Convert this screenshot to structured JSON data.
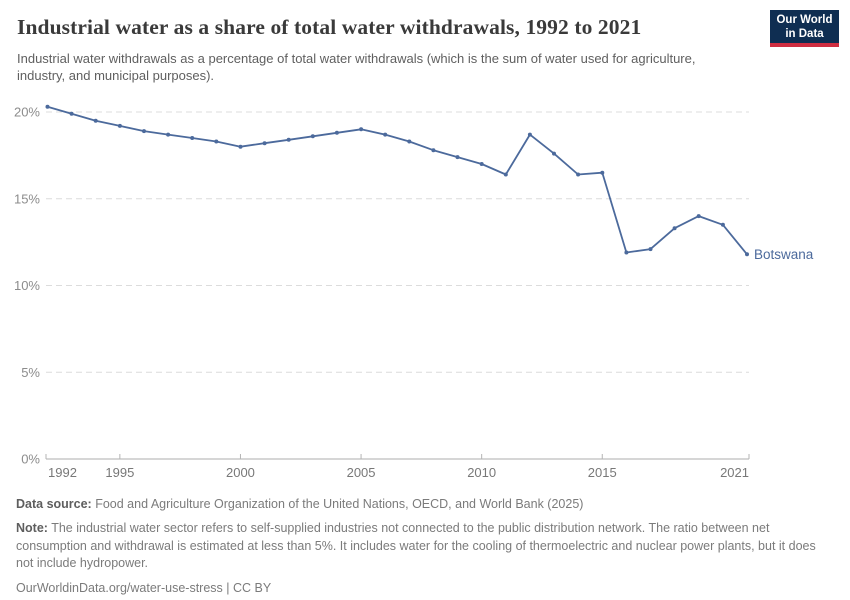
{
  "header": {
    "title": "Industrial water as a share of total water withdrawals, 1992 to 2021",
    "subtitle": "Industrial water withdrawals as a percentage of total water withdrawals (which is the sum of water used for agriculture, industry, and municipal purposes)."
  },
  "logo": {
    "line1": "Our World",
    "line2": "in Data"
  },
  "chart_data": {
    "type": "line",
    "title": "Industrial water as a share of total water withdrawals, 1992 to 2021",
    "x": [
      1992,
      1993,
      1994,
      1995,
      1996,
      1997,
      1998,
      1999,
      2000,
      2001,
      2002,
      2003,
      2004,
      2005,
      2006,
      2007,
      2008,
      2009,
      2010,
      2011,
      2012,
      2013,
      2014,
      2015,
      2016,
      2017,
      2018,
      2019,
      2020,
      2021
    ],
    "series": [
      {
        "name": "Botswana",
        "values": [
          20.3,
          19.9,
          19.5,
          19.2,
          18.9,
          18.7,
          18.5,
          18.3,
          18.0,
          18.2,
          18.4,
          18.6,
          18.8,
          19.0,
          18.7,
          18.3,
          17.8,
          17.4,
          17.0,
          16.4,
          18.7,
          17.6,
          16.4,
          16.5,
          11.9,
          12.1,
          13.3,
          14.0,
          13.5,
          11.8
        ]
      }
    ],
    "unit": "%",
    "ylim": [
      0,
      20.5
    ],
    "yticks": [
      0,
      5,
      10,
      15,
      20
    ],
    "ytick_labels": [
      "0%",
      "5%",
      "10%",
      "15%",
      "20%"
    ],
    "xticks": [
      1992,
      1995,
      2000,
      2005,
      2010,
      2015,
      2021
    ],
    "grid": "horizontal-dashed",
    "legend_position": "end-of-line"
  },
  "footer": {
    "data_source_label": "Data source:",
    "data_source_text": "Food and Agriculture Organization of the United Nations, OECD, and World Bank (2025)",
    "note_label": "Note:",
    "note_text": "The industrial water sector refers to self-supplied industries not connected to the public distribution network. The ratio between net consumption and withdrawal is estimated at less than 5%. It includes water for the cooling of thermoelectric and nuclear power plants, but it does not include hydropower.",
    "citation": "OurWorldinData.org/water-use-stress | CC BY"
  },
  "colors": {
    "series": "#4c6a9c",
    "title": "#3a3a3a",
    "subtitle": "#5f5f5f",
    "y_axis_label": "#8c8c8c",
    "x_axis_label": "#787878",
    "gridline": "#dcdcdc",
    "axis_line": "#c8c8c8",
    "tick_mark": "#b4b4b4",
    "logo_bg": "#0f2e52",
    "logo_red": "#cf2e41"
  }
}
